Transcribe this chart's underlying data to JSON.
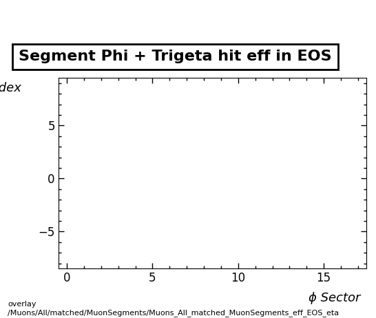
{
  "title": "Segment Phi + Trigeta hit eff in EOS",
  "xlabel": "ϕ Sector",
  "xlim": [
    -0.5,
    17.5
  ],
  "ylim": [
    -8.5,
    9.5
  ],
  "xticks": [
    0,
    5,
    10,
    15
  ],
  "yticks": [
    -5,
    0,
    5
  ],
  "background_color": "#ffffff",
  "plot_bg_color": "#ffffff",
  "footer_line1": "overlay",
  "footer_line2": "/Muons/All/matched/MuonSegments/Muons_All_matched_MuonSegments_eff_EOS_eta",
  "title_fontsize": 16,
  "axis_label_fontsize": 13,
  "tick_fontsize": 12,
  "footer_fontsize": 8
}
